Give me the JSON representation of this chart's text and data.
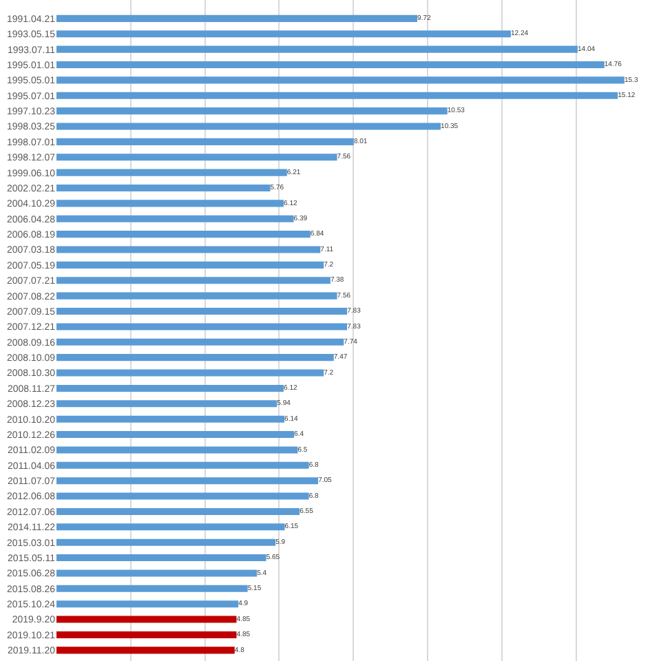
{
  "chart_data": {
    "type": "bar",
    "orientation": "horizontal",
    "categories": [
      "1991.04.21",
      "1993.05.15",
      "1993.07.11",
      "1995.01.01",
      "1995.05.01",
      "1995.07.01",
      "1997.10.23",
      "1998.03.25",
      "1998.07.01",
      "1998.12.07",
      "1999.06.10",
      "2002.02.21",
      "2004.10.29",
      "2006.04.28",
      "2006.08.19",
      "2007.03.18",
      "2007.05.19",
      "2007.07.21",
      "2007.08.22",
      "2007.09.15",
      "2007.12.21",
      "2008.09.16",
      "2008.10.09",
      "2008.10.30",
      "2008.11.27",
      "2008.12.23",
      "2010.10.20",
      "2010.12.26",
      "2011.02.09",
      "2011.04.06",
      "2011.07.07",
      "2012.06.08",
      "2012.07.06",
      "2014.11.22",
      "2015.03.01",
      "2015.05.11",
      "2015.06.28",
      "2015.08.26",
      "2015.10.24",
      "2019.9.20",
      "2019.10.21",
      "2019.11.20"
    ],
    "values": [
      9.72,
      12.24,
      14.04,
      14.76,
      15.3,
      15.12,
      10.53,
      10.35,
      8.01,
      7.56,
      6.21,
      5.76,
      6.12,
      6.39,
      6.84,
      7.11,
      7.2,
      7.38,
      7.56,
      7.83,
      7.83,
      7.74,
      7.47,
      7.2,
      6.12,
      5.94,
      6.14,
      6.4,
      6.5,
      6.8,
      7.05,
      6.8,
      6.55,
      6.15,
      5.9,
      5.65,
      5.4,
      5.15,
      4.9,
      4.85,
      4.85,
      4.8
    ],
    "colors": [
      "#5b9bd5",
      "#5b9bd5",
      "#5b9bd5",
      "#5b9bd5",
      "#5b9bd5",
      "#5b9bd5",
      "#5b9bd5",
      "#5b9bd5",
      "#5b9bd5",
      "#5b9bd5",
      "#5b9bd5",
      "#5b9bd5",
      "#5b9bd5",
      "#5b9bd5",
      "#5b9bd5",
      "#5b9bd5",
      "#5b9bd5",
      "#5b9bd5",
      "#5b9bd5",
      "#5b9bd5",
      "#5b9bd5",
      "#5b9bd5",
      "#5b9bd5",
      "#5b9bd5",
      "#5b9bd5",
      "#5b9bd5",
      "#5b9bd5",
      "#5b9bd5",
      "#5b9bd5",
      "#5b9bd5",
      "#5b9bd5",
      "#5b9bd5",
      "#5b9bd5",
      "#5b9bd5",
      "#5b9bd5",
      "#5b9bd5",
      "#5b9bd5",
      "#5b9bd5",
      "#5b9bd5",
      "#c00000",
      "#c00000",
      "#c00000"
    ],
    "grid": "x",
    "tick_labels": "y",
    "data_labels": true
  }
}
